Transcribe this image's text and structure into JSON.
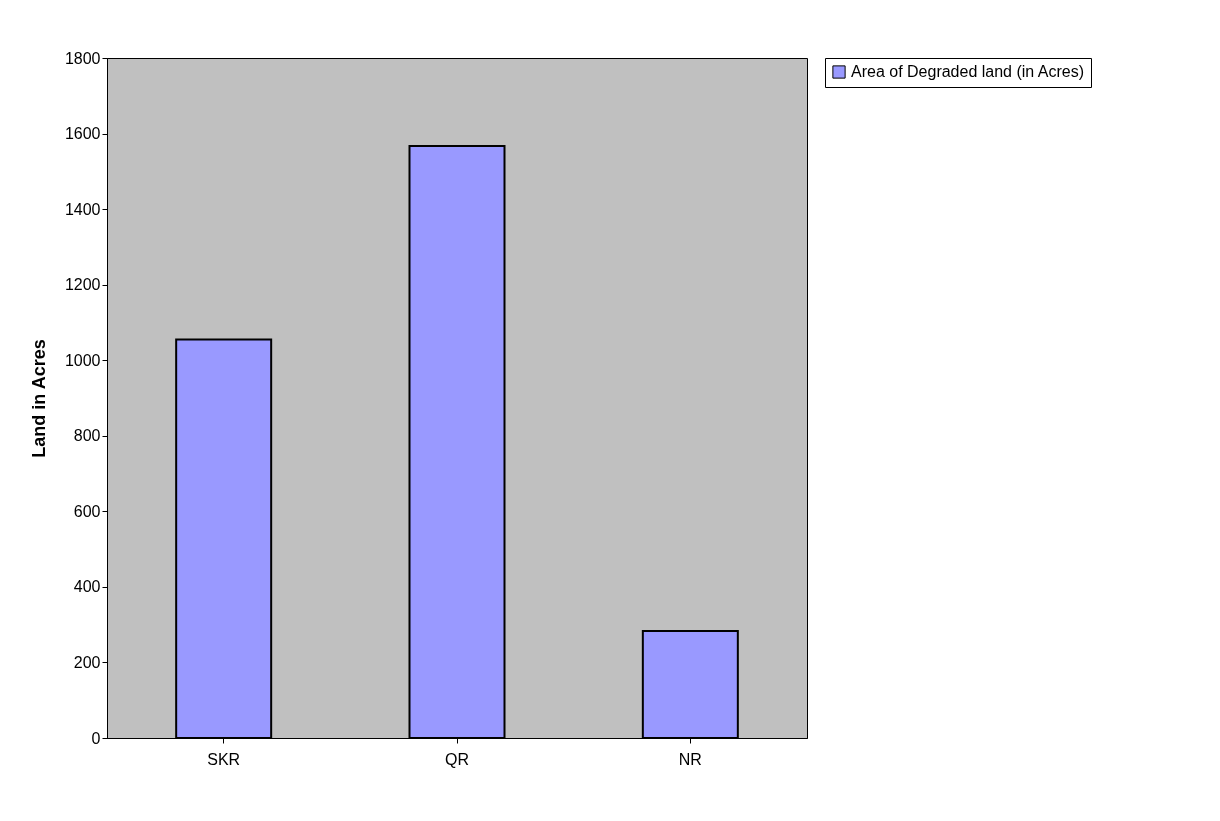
{
  "chart_data": {
    "type": "bar",
    "ylabel": "Land in Acres",
    "categories": [
      "SKR",
      "QR",
      "NR"
    ],
    "series": [
      {
        "name": "Area of Degraded land (in Acres)",
        "color": "#9999ff",
        "values": [
          1055,
          1567,
          283
        ]
      }
    ],
    "ylim": [
      0,
      1800
    ],
    "yticks": [
      0,
      200,
      400,
      600,
      800,
      1000,
      1200,
      1400,
      1600,
      1800
    ],
    "grid": false,
    "legend": "right"
  }
}
